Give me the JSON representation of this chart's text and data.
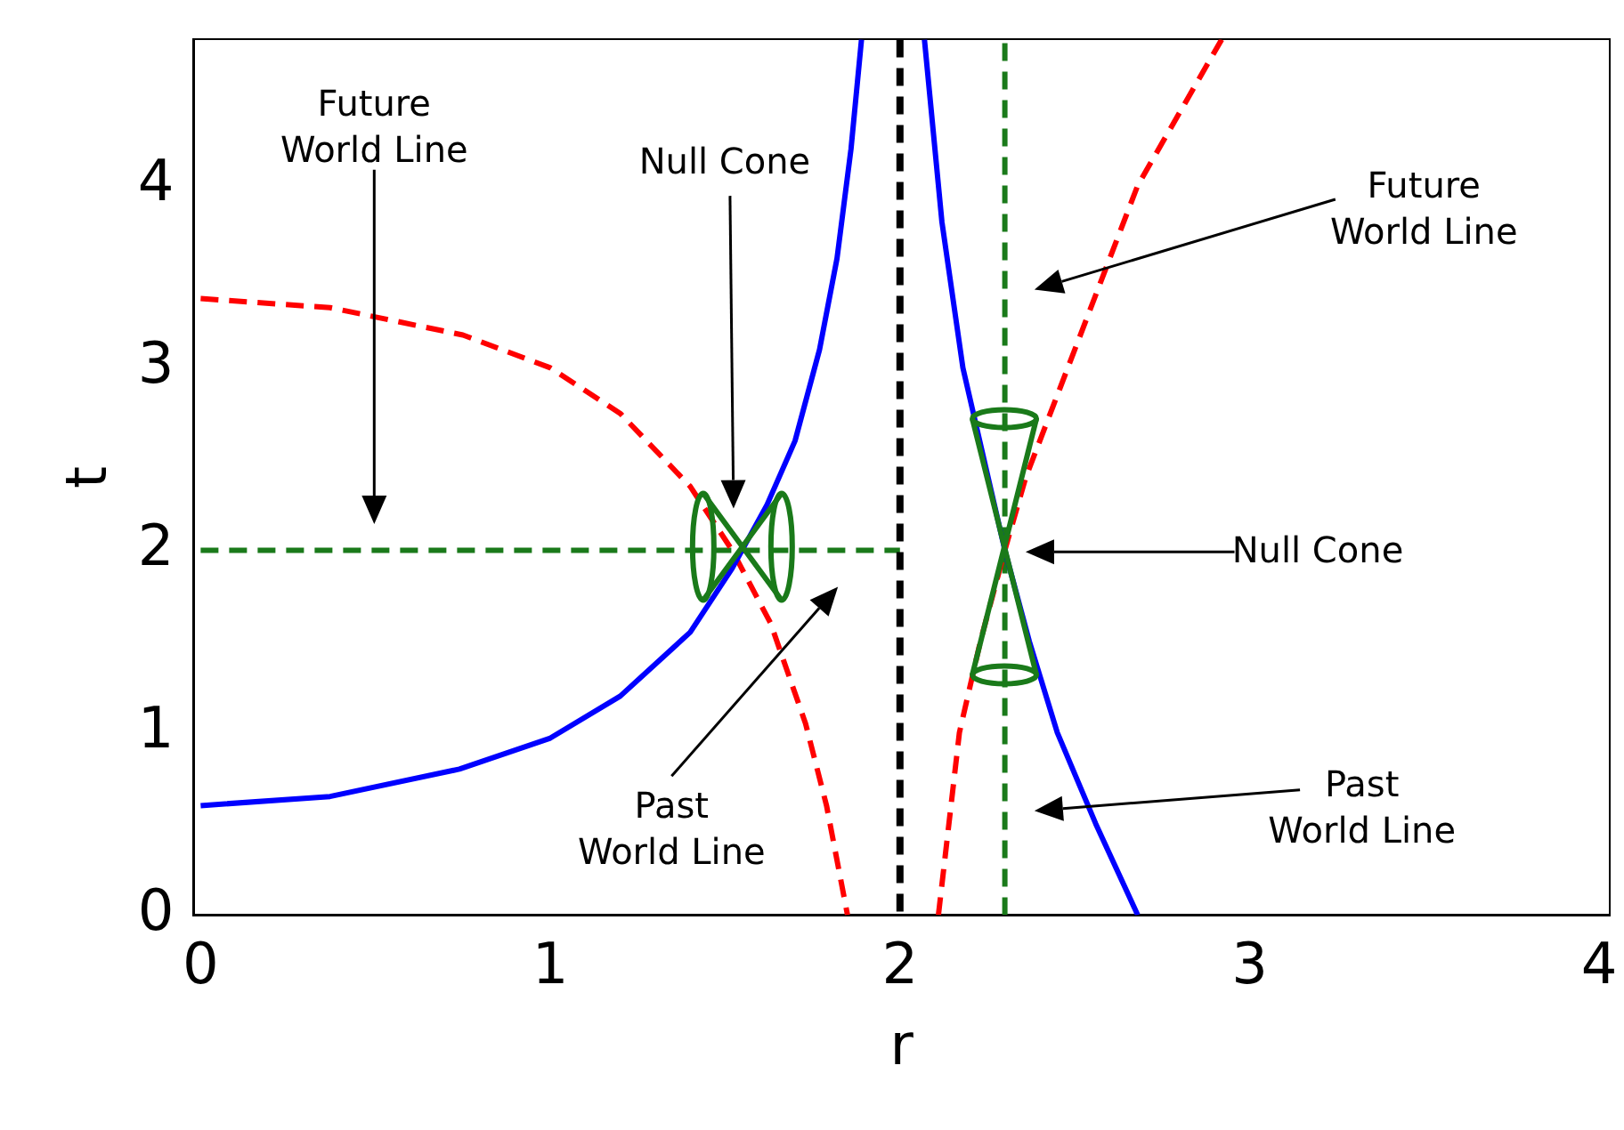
{
  "chart_data": {
    "type": "line",
    "xlabel": "r",
    "ylabel": "t",
    "xlim": [
      -0.02,
      4.03
    ],
    "ylim": [
      0,
      4.8
    ],
    "xticks": [
      0,
      1,
      2,
      3,
      4
    ],
    "yticks": [
      0,
      1,
      2,
      3,
      4
    ],
    "grid": false,
    "legend": false,
    "marker": "none",
    "series": [
      {
        "color": "#0000ff",
        "line_style": "solid",
        "x": [
          0,
          0.37,
          0.74,
          1.0,
          1.2,
          1.4,
          1.52,
          1.62,
          1.7,
          1.77,
          1.82,
          1.86,
          1.89
        ],
        "values": [
          0.6,
          0.65,
          0.8,
          0.97,
          1.2,
          1.55,
          1.9,
          2.25,
          2.6,
          3.1,
          3.6,
          4.2,
          4.8
        ]
      },
      {
        "color": "#0000ff",
        "line_style": "solid",
        "x": [
          2.07,
          2.12,
          2.18,
          2.24,
          2.3,
          2.37,
          2.45,
          2.56,
          2.68
        ],
        "values": [
          4.8,
          3.8,
          3.0,
          2.5,
          2.0,
          1.5,
          1.0,
          0.5,
          0
        ]
      },
      {
        "color": "#ff0000",
        "line_style": "dashed",
        "x": [
          0,
          0.37,
          0.75,
          1.0,
          1.2,
          1.4,
          1.52,
          1.63,
          1.73,
          1.79,
          1.85
        ],
        "values": [
          3.38,
          3.33,
          3.18,
          3.0,
          2.75,
          2.35,
          2.0,
          1.6,
          1.05,
          0.6,
          0
        ]
      },
      {
        "color": "#ff0000",
        "line_style": "dashed",
        "x": [
          2.11,
          2.17,
          2.23,
          2.3,
          2.36,
          2.44,
          2.54,
          2.68,
          2.8,
          2.92
        ],
        "values": [
          0,
          1.0,
          1.5,
          2.0,
          2.4,
          2.8,
          3.3,
          4.0,
          4.4,
          4.8
        ]
      },
      {
        "color": "#1a7a1a",
        "line_style": "dashed",
        "x": [
          0,
          2
        ],
        "values": [
          2,
          2
        ]
      },
      {
        "color": "#1a7a1a",
        "line_style": "dashed",
        "x": [
          2.3,
          2.3
        ],
        "values": [
          0,
          4.8
        ]
      }
    ],
    "ref_lines": [
      {
        "axis": "x",
        "value": 2,
        "color": "#000000",
        "line_style": "dashed"
      }
    ],
    "annotations": [
      "Future\nWorld Line",
      "Null Cone",
      "Future\nWorld Line",
      "Null Cone",
      "Past\nWorld Line",
      "Past\nWorld Line"
    ]
  }
}
